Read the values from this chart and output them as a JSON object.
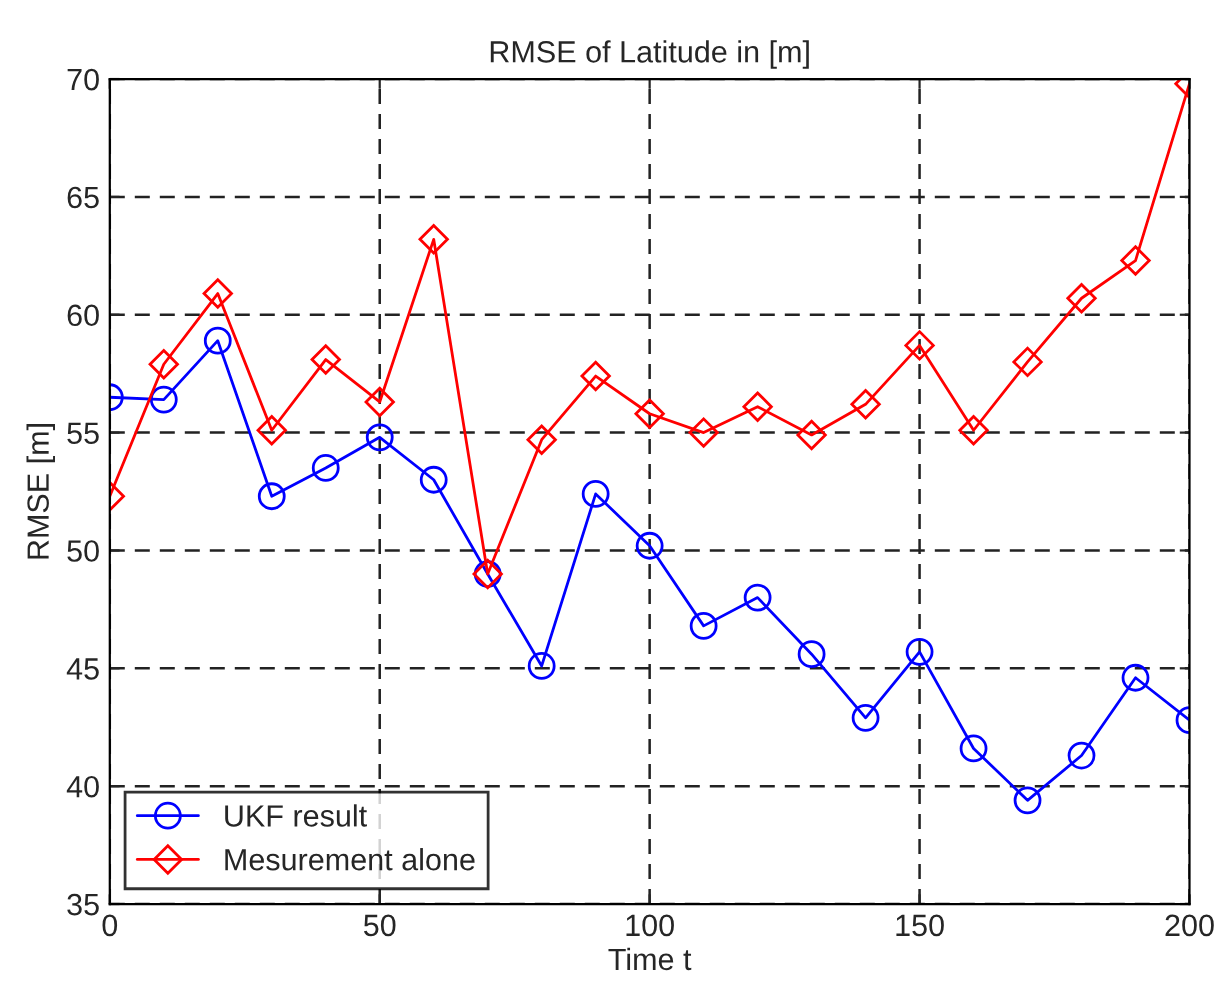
{
  "chart_data": {
    "type": "line",
    "title": "RMSE of Latitude in [m]",
    "xlabel": "Time t",
    "ylabel": "RMSE [m]",
    "x": [
      0,
      10,
      20,
      30,
      40,
      50,
      60,
      70,
      80,
      90,
      100,
      110,
      120,
      130,
      140,
      150,
      160,
      170,
      180,
      190,
      200
    ],
    "series": [
      {
        "name": "UKF result",
        "color": "#0000ff",
        "marker": "circle",
        "values": [
          56.5,
          56.4,
          58.9,
          52.3,
          53.5,
          54.8,
          53.0,
          49.0,
          45.1,
          52.4,
          50.2,
          46.8,
          48.0,
          45.6,
          42.9,
          45.7,
          41.6,
          39.4,
          41.3,
          44.6,
          42.8
        ]
      },
      {
        "name": "Mesurement alone",
        "color": "#ff0000",
        "marker": "diamond",
        "values": [
          52.3,
          57.9,
          60.9,
          55.1,
          58.1,
          56.3,
          63.2,
          49.0,
          54.7,
          57.4,
          55.8,
          55.0,
          56.1,
          54.9,
          56.2,
          58.7,
          55.1,
          58.0,
          60.7,
          62.3,
          69.8
        ]
      }
    ],
    "xlim": [
      0,
      200
    ],
    "xticks": [
      0,
      50,
      100,
      150,
      200
    ],
    "ylim": [
      35,
      70
    ],
    "yticks": [
      35,
      40,
      45,
      50,
      55,
      60,
      65,
      70
    ],
    "grid": true,
    "legend": "bottom left",
    "line_style": "solid"
  }
}
